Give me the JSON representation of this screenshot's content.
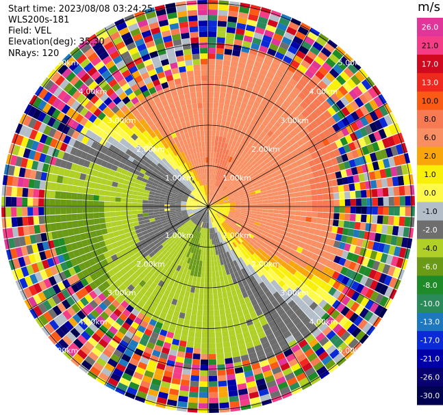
{
  "info": {
    "start_time": "Start time: 2023/08/08 03:24:25",
    "instrument": "WLS200s-181",
    "field": "Field: VEL",
    "elevation": "Elevation(deg): 35.30",
    "nrays": "NRays: 120"
  },
  "colorbar": {
    "unit": "m/s",
    "ticks": [
      "26.0",
      "21.0",
      "17.0",
      "13.0",
      "10.0",
      "8.0",
      "6.0",
      "2.0",
      "1.0",
      "0.0",
      "-1.0",
      "-2.0",
      "-4.0",
      "-6.0",
      "-8.0",
      "-10.0",
      "-13.0",
      "-17.0",
      "-21.0",
      "-26.0",
      "-30.0"
    ],
    "colors": [
      "#e0369a",
      "#f53c86",
      "#d0091e",
      "#f0281e",
      "#fa5a14",
      "#f77a52",
      "#f98f62",
      "#f9a60c",
      "#f9f00a",
      "#fffa4a",
      "#b4bec8",
      "#6e6e6e",
      "#b0d028",
      "#6a9a16",
      "#1e8a28",
      "#2a8a5a",
      "#1e78c0",
      "#0a2ad8",
      "#0000a8",
      "#08006e",
      "#000050"
    ]
  },
  "chart_data": {
    "type": "ppi",
    "field": "VEL",
    "unit": "m/s",
    "nrays": 120,
    "range_labels": [
      "1.00km",
      "2.00km",
      "3.00km",
      "4.00km",
      "5.00km"
    ],
    "max_range_km": 5.0,
    "vmin": -30.0,
    "vmax": 30.0
  }
}
